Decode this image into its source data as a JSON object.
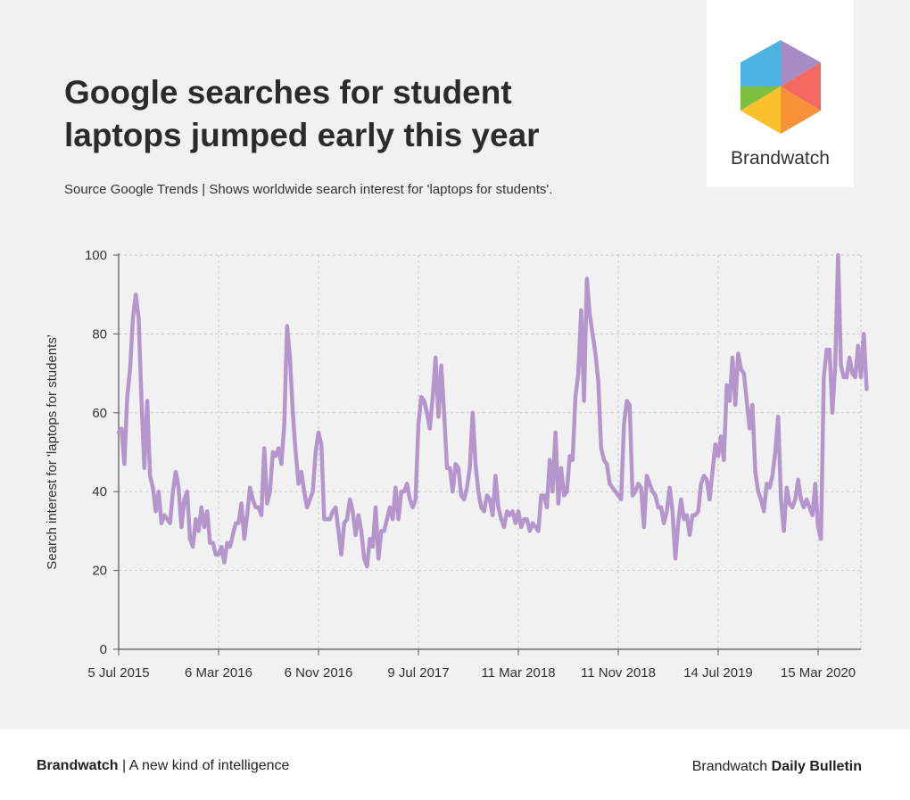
{
  "title": "Google searches for student laptops jumped early this year",
  "subtitle": "Source Google Trends | Shows worldwide search interest for 'laptops for students'.",
  "logo": {
    "icon": "brandwatch-hexagon-logo",
    "label": "Brandwatch"
  },
  "footer": {
    "brand": "Brandwatch",
    "tagline": " | A new kind of intelligence",
    "bulletin_prefix": "Brandwatch ",
    "bulletin_name": "Daily Bulletin"
  },
  "colors": {
    "line": "#b496cd",
    "background": "#f1f1f1",
    "grid": "#c8c8c8",
    "axis": "#555555"
  },
  "chart_data": {
    "type": "line",
    "title": "",
    "xlabel": "",
    "ylabel": "Search interest for 'laptops for students'",
    "x_tick_labels": [
      "5 Jul 2015",
      "6 Mar 2016",
      "6 Nov 2016",
      "9 Jul 2017",
      "11 Mar 2018",
      "11 Nov 2018",
      "14 Jul 2019",
      "15 Mar 2020"
    ],
    "y_ticks": [
      0,
      20,
      40,
      60,
      80,
      100
    ],
    "ylim": [
      0,
      100
    ],
    "xlim": [
      "2015-07-05",
      "2020-06-28"
    ],
    "grid": true,
    "interval": "weekly",
    "series": [
      {
        "name": "",
        "start": "2015-07-05",
        "values": [
          55,
          56,
          47,
          64,
          71,
          84,
          90,
          84,
          63,
          46,
          63,
          44,
          41,
          35,
          40,
          32,
          34,
          33,
          32,
          40,
          45,
          41,
          31,
          38,
          40,
          28,
          26,
          33,
          30,
          36,
          31,
          35,
          27,
          27,
          24,
          24,
          26,
          22,
          27,
          26,
          29,
          32,
          32,
          37,
          28,
          34,
          41,
          38,
          36,
          36,
          34,
          51,
          37,
          40,
          50,
          49,
          51,
          47,
          57,
          82,
          74,
          60,
          50,
          42,
          45,
          40,
          36,
          38,
          40,
          50,
          55,
          52,
          33,
          33,
          33,
          35,
          36,
          30,
          24,
          32,
          33,
          38,
          35,
          29,
          34,
          30,
          23,
          21,
          28,
          26,
          36,
          23,
          30,
          30,
          33,
          36,
          33,
          41,
          33,
          40,
          40,
          42,
          38,
          36,
          38,
          57,
          64,
          63,
          60,
          56,
          64,
          74,
          59,
          72,
          60,
          46,
          46,
          40,
          47,
          46,
          39,
          38,
          41,
          46,
          60,
          47,
          40,
          36,
          35,
          39,
          38,
          34,
          44,
          36,
          33,
          31,
          35,
          34,
          35,
          32,
          35,
          31,
          33,
          33,
          30,
          32,
          31,
          30,
          39,
          39,
          36,
          48,
          40,
          55,
          37,
          46,
          39,
          40,
          49,
          48,
          64,
          70,
          86,
          63,
          94,
          85,
          80,
          75,
          68,
          51,
          48,
          47,
          42,
          41,
          40,
          39,
          38,
          57,
          63,
          62,
          39,
          40,
          42,
          41,
          31,
          44,
          42,
          40,
          39,
          36,
          36,
          32,
          35,
          41,
          35,
          23,
          32,
          38,
          33,
          34,
          29,
          34,
          34,
          35,
          42,
          44,
          43,
          38,
          45,
          52,
          49,
          54,
          48,
          67,
          63,
          74,
          62,
          75,
          71,
          70,
          63,
          56,
          62,
          45,
          40,
          38,
          35,
          42,
          41,
          44,
          50,
          59,
          38,
          30,
          41,
          37,
          36,
          38,
          43,
          38,
          36,
          38,
          36,
          34,
          42,
          31,
          28,
          69,
          76,
          76,
          60,
          72,
          100,
          72,
          69,
          69,
          74,
          70,
          69,
          77,
          69,
          80,
          66
        ]
      }
    ]
  }
}
